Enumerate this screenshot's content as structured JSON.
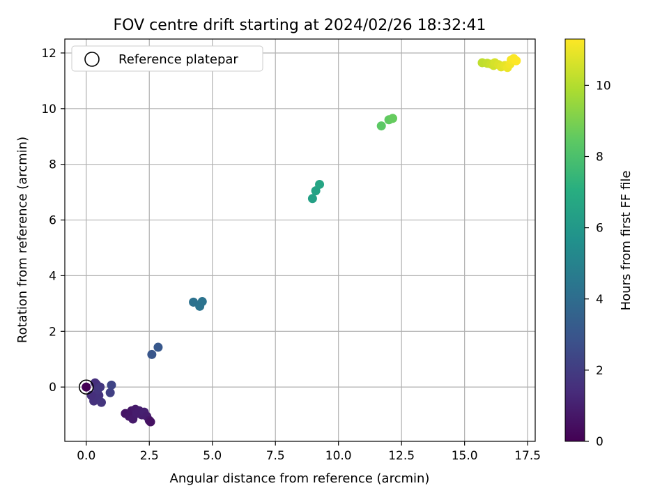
{
  "chart_data": {
    "type": "scatter",
    "title": "FOV centre drift starting at 2024/02/26 18:32:41",
    "xlabel": "Angular distance from reference (arcmin)",
    "ylabel": "Rotation from reference (arcmin)",
    "xlim": [
      -0.85,
      17.8
    ],
    "ylim": [
      -1.95,
      12.5
    ],
    "x_ticks": [
      0.0,
      2.5,
      5.0,
      7.5,
      10.0,
      12.5,
      15.0,
      17.5
    ],
    "x_tick_labels": [
      "0.0",
      "2.5",
      "5.0",
      "7.5",
      "10.0",
      "12.5",
      "15.0",
      "17.5"
    ],
    "y_ticks": [
      0,
      2,
      4,
      6,
      8,
      10,
      12
    ],
    "y_tick_labels": [
      "0",
      "2",
      "4",
      "6",
      "8",
      "10",
      "12"
    ],
    "grid": true,
    "legend": {
      "position": "top-left",
      "entries": [
        "Reference platepar"
      ]
    },
    "reference_point": {
      "x": 0.0,
      "y": 0.0
    },
    "colorbar": {
      "label": "Hours from first FF file",
      "colormap": "viridis",
      "range": [
        0,
        11.3
      ],
      "ticks": [
        0,
        2,
        4,
        6,
        8,
        10
      ],
      "tick_labels": [
        "0",
        "2",
        "4",
        "6",
        "8",
        "10"
      ]
    },
    "points": [
      {
        "x": 0.0,
        "y": 0.0,
        "hours": 0.0
      },
      {
        "x": 0.3,
        "y": -0.35,
        "hours": 1.5
      },
      {
        "x": 0.3,
        "y": -0.5,
        "hours": 1.6
      },
      {
        "x": 0.4,
        "y": 0.1,
        "hours": 1.4
      },
      {
        "x": 0.35,
        "y": 0.15,
        "hours": 1.5
      },
      {
        "x": 0.5,
        "y": -0.3,
        "hours": 1.6
      },
      {
        "x": 0.45,
        "y": -0.1,
        "hours": 1.7
      },
      {
        "x": 0.55,
        "y": 0.0,
        "hours": 1.8
      },
      {
        "x": 0.6,
        "y": -0.55,
        "hours": 1.7
      },
      {
        "x": 0.2,
        "y": -0.3,
        "hours": 1.5
      },
      {
        "x": 0.95,
        "y": -0.2,
        "hours": 2.1
      },
      {
        "x": 1.0,
        "y": 0.07,
        "hours": 2.3
      },
      {
        "x": 1.55,
        "y": -0.95,
        "hours": 0.6
      },
      {
        "x": 1.7,
        "y": -1.05,
        "hours": 0.7
      },
      {
        "x": 1.85,
        "y": -1.15,
        "hours": 0.8
      },
      {
        "x": 1.8,
        "y": -0.85,
        "hours": 0.7
      },
      {
        "x": 1.95,
        "y": -0.8,
        "hours": 0.8
      },
      {
        "x": 2.0,
        "y": -0.95,
        "hours": 0.9
      },
      {
        "x": 2.1,
        "y": -0.85,
        "hours": 0.9
      },
      {
        "x": 2.2,
        "y": -1.0,
        "hours": 0.9
      },
      {
        "x": 2.3,
        "y": -0.9,
        "hours": 1.0
      },
      {
        "x": 2.4,
        "y": -1.05,
        "hours": 0.9
      },
      {
        "x": 2.5,
        "y": -1.2,
        "hours": 0.7
      },
      {
        "x": 2.55,
        "y": -1.25,
        "hours": 0.5
      },
      {
        "x": 2.6,
        "y": 1.17,
        "hours": 3.0
      },
      {
        "x": 2.85,
        "y": 1.43,
        "hours": 3.1
      },
      {
        "x": 4.25,
        "y": 3.05,
        "hours": 4.2
      },
      {
        "x": 4.5,
        "y": 2.9,
        "hours": 4.3
      },
      {
        "x": 4.6,
        "y": 3.07,
        "hours": 4.3
      },
      {
        "x": 8.97,
        "y": 6.77,
        "hours": 6.4
      },
      {
        "x": 9.1,
        "y": 7.05,
        "hours": 6.5
      },
      {
        "x": 9.25,
        "y": 7.28,
        "hours": 6.6
      },
      {
        "x": 11.7,
        "y": 9.38,
        "hours": 8.4
      },
      {
        "x": 12.0,
        "y": 9.6,
        "hours": 8.5
      },
      {
        "x": 12.15,
        "y": 9.65,
        "hours": 8.6
      },
      {
        "x": 15.7,
        "y": 11.65,
        "hours": 10.2
      },
      {
        "x": 15.9,
        "y": 11.63,
        "hours": 10.3
      },
      {
        "x": 16.05,
        "y": 11.6,
        "hours": 10.4
      },
      {
        "x": 16.15,
        "y": 11.55,
        "hours": 10.5
      },
      {
        "x": 16.2,
        "y": 11.65,
        "hours": 10.6
      },
      {
        "x": 16.35,
        "y": 11.58,
        "hours": 10.7
      },
      {
        "x": 16.45,
        "y": 11.5,
        "hours": 10.8
      },
      {
        "x": 16.6,
        "y": 11.55,
        "hours": 10.9
      },
      {
        "x": 16.7,
        "y": 11.48,
        "hours": 11.0
      },
      {
        "x": 16.8,
        "y": 11.6,
        "hours": 11.1
      },
      {
        "x": 16.85,
        "y": 11.75,
        "hours": 11.2
      },
      {
        "x": 16.95,
        "y": 11.8,
        "hours": 11.25
      },
      {
        "x": 17.05,
        "y": 11.72,
        "hours": 11.3
      }
    ]
  }
}
